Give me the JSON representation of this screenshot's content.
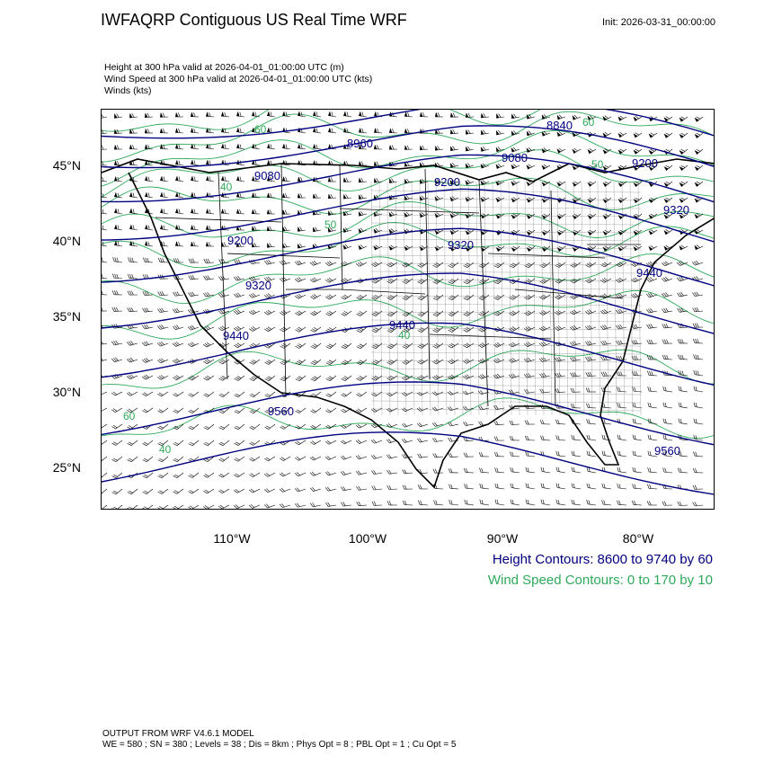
{
  "title": "IWFAQRP Contiguous US Real Time WRF",
  "init": "Init: 2026-03-31_00:00:00",
  "fields": {
    "height": "Height at 300 hPa valid at 2026-04-01_01:00:00 UTC   (m)",
    "wind_speed": "Wind Speed at 300 hPa valid at 2026-04-01_01:00:00 UTC   (kts)",
    "winds": "Winds   (kts)"
  },
  "axes": {
    "lat_labels": [
      "45°N",
      "40°N",
      "35°N",
      "30°N",
      "25°N"
    ],
    "lon_labels": [
      "110°W",
      "100°W",
      "90°W",
      "80°W"
    ]
  },
  "contour_labels": {
    "height": [
      "8840",
      "8960",
      "9080",
      "9080",
      "9200",
      "9200",
      "9200",
      "9320",
      "9320",
      "9320",
      "9440",
      "9440",
      "9440",
      "9560",
      "9560"
    ],
    "wind": [
      "60",
      "40",
      "50",
      "60",
      "50",
      "40",
      "60",
      "40"
    ]
  },
  "legend": {
    "height": "Height Contours: 8600 to 9740 by 60",
    "wind": "Wind Speed Contours: 0 to 170 by 10"
  },
  "footer": {
    "line1": "OUTPUT FROM WRF V4.6.1 MODEL",
    "line2": "WE = 580 ; SN = 380 ; Levels = 38 ; Dis = 8km ; Phys Opt = 8 ; PBL Opt = 1 ; Cu Opt = 5"
  },
  "colors": {
    "height_contour": "#000080",
    "wind_contour": "#2eaa5a",
    "barbs": "#000000"
  }
}
